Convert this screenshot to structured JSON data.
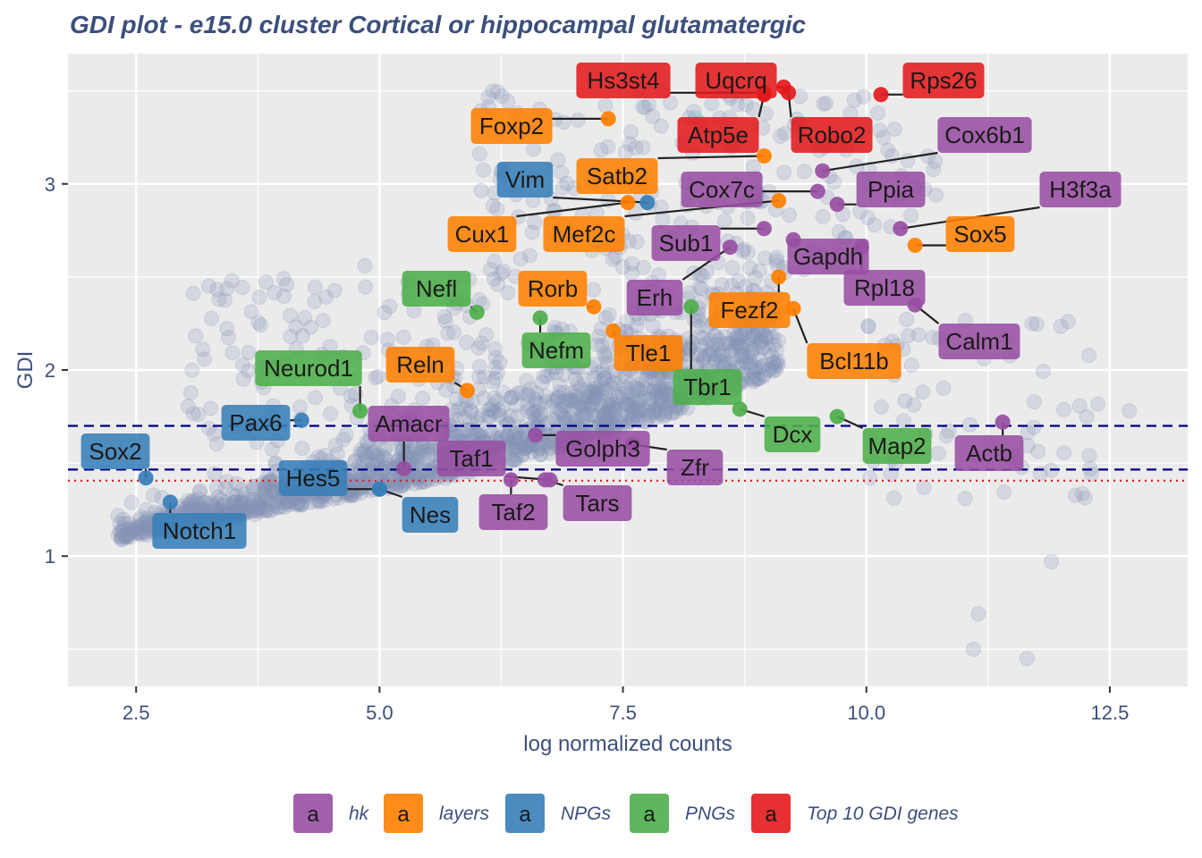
{
  "chart_data": {
    "type": "scatter",
    "title": "GDI plot - e15.0 cluster Cortical or hippocampal glutamatergic",
    "xlabel": "log normalized counts",
    "ylabel": "GDI",
    "xlim": [
      1.8,
      13.3
    ],
    "ylim": [
      0.3,
      3.7
    ],
    "x_ticks": [
      2.5,
      5.0,
      7.5,
      10.0,
      12.5
    ],
    "x_tick_labels": [
      "2.5",
      "5.0",
      "7.5",
      "10.0",
      "12.5"
    ],
    "y_ticks": [
      1,
      2,
      3
    ],
    "y_tick_labels": [
      "1",
      "2",
      "3"
    ],
    "grid": true,
    "background_color": "#ebebeb",
    "background_point_color": "#8592b5",
    "thresholds": [
      {
        "y": 1.7,
        "color": "#000080",
        "style": "dashed"
      },
      {
        "y": 1.465,
        "color": "#000080",
        "style": "dashed"
      },
      {
        "y": 1.405,
        "color": "#e41a1c",
        "style": "dotted"
      }
    ],
    "legend_position": "bottom",
    "legend_key_symbol": "a",
    "categories": [
      {
        "key": "hk",
        "name": "hk",
        "color": "#984ea3"
      },
      {
        "key": "layers",
        "name": "layers",
        "color": "#ff7f00"
      },
      {
        "key": "NPGs",
        "name": "NPGs",
        "color": "#377eb8"
      },
      {
        "key": "PNGs",
        "name": "PNGs",
        "color": "#4daf4a"
      },
      {
        "key": "top10",
        "name": "Top 10 GDI genes",
        "color": "#e41a1c"
      }
    ],
    "genes": [
      {
        "gene": "Hs3st4",
        "x": 8.95,
        "y": 3.49,
        "cat": "top10"
      },
      {
        "gene": "Uqcrq",
        "x": 9.15,
        "y": 3.52,
        "cat": "top10"
      },
      {
        "gene": "Rps26",
        "x": 10.15,
        "y": 3.48,
        "cat": "top10"
      },
      {
        "gene": "Atp5e",
        "x": 8.95,
        "y": 3.48,
        "cat": "top10"
      },
      {
        "gene": "Robo2",
        "x": 9.2,
        "y": 3.49,
        "cat": "top10"
      },
      {
        "gene": "Foxp2",
        "x": 7.35,
        "y": 3.35,
        "cat": "layers"
      },
      {
        "gene": "Satb2",
        "x": 8.95,
        "y": 3.15,
        "cat": "layers"
      },
      {
        "gene": "Cux1",
        "x": 7.55,
        "y": 2.9,
        "cat": "layers"
      },
      {
        "gene": "Mef2c",
        "x": 9.1,
        "y": 2.91,
        "cat": "layers"
      },
      {
        "gene": "Sox5",
        "x": 10.5,
        "y": 2.67,
        "cat": "layers"
      },
      {
        "gene": "Rorb",
        "x": 7.2,
        "y": 2.34,
        "cat": "layers"
      },
      {
        "gene": "Fezf2",
        "x": 9.1,
        "y": 2.5,
        "cat": "layers"
      },
      {
        "gene": "Bcl11b",
        "x": 9.25,
        "y": 2.33,
        "cat": "layers"
      },
      {
        "gene": "Tle1",
        "x": 7.4,
        "y": 2.21,
        "cat": "layers"
      },
      {
        "gene": "Reln",
        "x": 5.9,
        "y": 1.89,
        "cat": "layers"
      },
      {
        "gene": "Cox6b1",
        "x": 9.55,
        "y": 3.07,
        "cat": "hk"
      },
      {
        "gene": "Cox7c",
        "x": 9.5,
        "y": 2.96,
        "cat": "hk"
      },
      {
        "gene": "Ppia",
        "x": 9.7,
        "y": 2.89,
        "cat": "hk"
      },
      {
        "gene": "H3f3a",
        "x": 10.35,
        "y": 2.76,
        "cat": "hk"
      },
      {
        "gene": "Sub1",
        "x": 8.95,
        "y": 2.76,
        "cat": "hk"
      },
      {
        "gene": "Gapdh",
        "x": 9.25,
        "y": 2.7,
        "cat": "hk"
      },
      {
        "gene": "Erh",
        "x": 8.6,
        "y": 2.66,
        "cat": "hk"
      },
      {
        "gene": "Rpl18",
        "x": 9.95,
        "y": 2.66,
        "cat": "hk"
      },
      {
        "gene": "Calm1",
        "x": 10.5,
        "y": 2.35,
        "cat": "hk"
      },
      {
        "gene": "Amacr",
        "x": 5.25,
        "y": 1.47,
        "cat": "hk"
      },
      {
        "gene": "Golph3",
        "x": 6.6,
        "y": 1.65,
        "cat": "hk"
      },
      {
        "gene": "Zfr",
        "x": 7.6,
        "y": 1.6,
        "cat": "hk"
      },
      {
        "gene": "Actb",
        "x": 11.4,
        "y": 1.72,
        "cat": "hk"
      },
      {
        "gene": "Taf1",
        "x": 6.75,
        "y": 1.41,
        "cat": "hk"
      },
      {
        "gene": "Taf2",
        "x": 6.35,
        "y": 1.41,
        "cat": "hk"
      },
      {
        "gene": "Tars",
        "x": 6.7,
        "y": 1.41,
        "cat": "hk"
      },
      {
        "gene": "Vim",
        "x": 7.75,
        "y": 2.9,
        "cat": "NPGs"
      },
      {
        "gene": "Pax6",
        "x": 4.2,
        "y": 1.73,
        "cat": "NPGs"
      },
      {
        "gene": "Sox2",
        "x": 2.6,
        "y": 1.42,
        "cat": "NPGs"
      },
      {
        "gene": "Hes5",
        "x": 5.0,
        "y": 1.36,
        "cat": "NPGs"
      },
      {
        "gene": "Nes",
        "x": 5.0,
        "y": 1.36,
        "cat": "NPGs"
      },
      {
        "gene": "Notch1",
        "x": 2.85,
        "y": 1.29,
        "cat": "NPGs"
      },
      {
        "gene": "Nefl",
        "x": 6.0,
        "y": 2.31,
        "cat": "PNGs"
      },
      {
        "gene": "Nefm",
        "x": 6.65,
        "y": 2.28,
        "cat": "PNGs"
      },
      {
        "gene": "Tbr1",
        "x": 8.2,
        "y": 2.34,
        "cat": "PNGs"
      },
      {
        "gene": "Neurod1",
        "x": 4.8,
        "y": 1.78,
        "cat": "PNGs"
      },
      {
        "gene": "Dcx",
        "x": 8.7,
        "y": 1.79,
        "cat": "PNGs"
      },
      {
        "gene": "Map2",
        "x": 9.7,
        "y": 1.75,
        "cat": "PNGs"
      }
    ]
  }
}
